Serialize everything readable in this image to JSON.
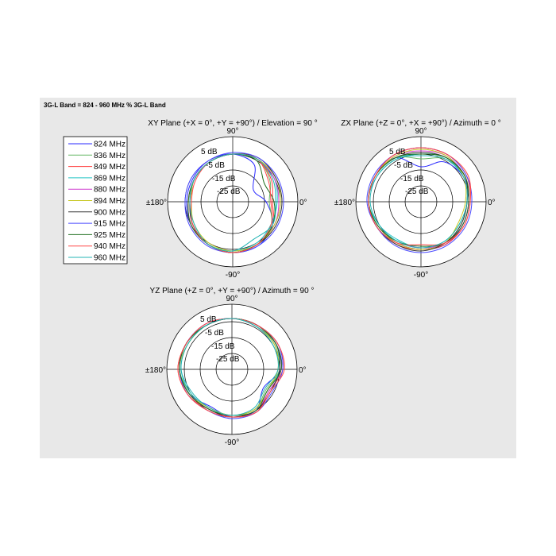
{
  "title": "3G-L Band = 824 - 960 MHz % 3G-L Band",
  "legend": [
    {
      "label": "824 MHz",
      "color": "#2a2aff"
    },
    {
      "label": "836 MHz",
      "color": "#66b866"
    },
    {
      "label": "849 MHz",
      "color": "#ff3a3a"
    },
    {
      "label": "869 MHz",
      "color": "#22c4c4"
    },
    {
      "label": "880 MHz",
      "color": "#d040d0"
    },
    {
      "label": "894 MHz",
      "color": "#c8c826"
    },
    {
      "label": "900 MHz",
      "color": "#333333"
    },
    {
      "label": "915 MHz",
      "color": "#4a4aff"
    },
    {
      "label": "925 MHz",
      "color": "#1f6e1f"
    },
    {
      "label": "940 MHz",
      "color": "#ff4848"
    },
    {
      "label": "960 MHz",
      "color": "#24b4b4"
    }
  ],
  "chart_data": [
    {
      "type": "polar",
      "title": "XY Plane (+X = 0°, +Y = +90°) / Elevation = 90 °",
      "angle_labels": {
        "top": "90°",
        "bottom": "-90°",
        "right": "0°",
        "left": "±180°"
      },
      "ring_labels": [
        "5 dB",
        "-5 dB",
        "-15 dB",
        "-25 dB"
      ],
      "rlim": [
        -35,
        5
      ],
      "angles_deg": [
        0,
        30,
        60,
        90,
        120,
        150,
        180,
        210,
        240,
        270,
        300,
        330
      ],
      "series": [
        {
          "name": "824 MHz",
          "values": [
            -14,
            -20,
            -8,
            -5,
            -5,
            -6,
            -6,
            -5,
            -4,
            -3,
            -3,
            -6
          ]
        },
        {
          "name": "836 MHz",
          "values": [
            -12,
            -8,
            -4,
            -5,
            -6,
            -7,
            -8,
            -6,
            -4,
            -4,
            -4,
            -7
          ]
        },
        {
          "name": "849 MHz",
          "values": [
            -10,
            -7,
            -4,
            -5,
            -6,
            -7,
            -7,
            -5,
            -4,
            -3,
            -4,
            -6
          ]
        },
        {
          "name": "869 MHz",
          "values": [
            -7,
            -5,
            -4,
            -5,
            -6,
            -7,
            -9,
            -6,
            -4,
            -4,
            -5,
            -7
          ]
        },
        {
          "name": "880 MHz",
          "values": [
            -6,
            -5,
            -4,
            -5,
            -6,
            -7,
            -8,
            -6,
            -4,
            -3,
            -4,
            -5
          ]
        },
        {
          "name": "894 MHz",
          "values": [
            -5,
            -4,
            -4,
            -5,
            -6,
            -7,
            -9,
            -7,
            -5,
            -4,
            -4,
            -5
          ]
        },
        {
          "name": "900 MHz",
          "values": [
            -4,
            -4,
            -3,
            -5,
            -6,
            -7,
            -8,
            -6,
            -4,
            -3,
            -4,
            -4
          ]
        },
        {
          "name": "915 MHz",
          "values": [
            -3,
            -3,
            -3,
            -4,
            -5,
            -5,
            -5,
            -4,
            -3,
            -3,
            -3,
            -3
          ]
        },
        {
          "name": "925 MHz",
          "values": [
            -9,
            -12,
            -5,
            -5,
            -6,
            -7,
            -7,
            -5,
            -4,
            -3,
            -4,
            -6
          ]
        },
        {
          "name": "940 MHz",
          "values": [
            -11,
            -9,
            -4,
            -5,
            -6,
            -8,
            -9,
            -6,
            -4,
            -3,
            -4,
            -7
          ]
        },
        {
          "name": "960 MHz",
          "values": [
            -8,
            -6,
            -4,
            -5,
            -6,
            -7,
            -8,
            -7,
            -4,
            -4,
            -8,
            -6
          ]
        }
      ]
    },
    {
      "type": "polar",
      "title": "ZX Plane (+Z = 0°, +X = +90°) / Azimuth = 0 °",
      "angle_labels": {
        "top": "90°",
        "bottom": "-90°",
        "right": "0°",
        "left": "±180°"
      },
      "ring_labels": [
        "5 dB",
        "-5 dB",
        "-15 dB",
        "-25 dB"
      ],
      "rlim": [
        -35,
        5
      ],
      "angles_deg": [
        0,
        30,
        60,
        90,
        120,
        150,
        180,
        210,
        240,
        270,
        300,
        330
      ],
      "series": [
        {
          "name": "824 MHz",
          "values": [
            -5,
            -4,
            -6,
            -13,
            -3,
            -2,
            -2,
            -3,
            -5,
            -5,
            -4,
            -5
          ]
        },
        {
          "name": "836 MHz",
          "values": [
            -6,
            -3,
            -4,
            -8,
            -3,
            -2,
            -2,
            -4,
            -6,
            -6,
            -5,
            -6
          ]
        },
        {
          "name": "849 MHz",
          "values": [
            -4,
            -2,
            -1,
            -1,
            -1,
            -2,
            -2,
            -3,
            -4,
            -5,
            -4,
            -4
          ]
        },
        {
          "name": "869 MHz",
          "values": [
            -6,
            -4,
            -3,
            -5,
            -4,
            -3,
            -2,
            -5,
            -7,
            -6,
            -6,
            -7
          ]
        },
        {
          "name": "880 MHz",
          "values": [
            -5,
            -3,
            -2,
            -3,
            -2,
            -2,
            -2,
            -4,
            -6,
            -6,
            -5,
            -5
          ]
        },
        {
          "name": "894 MHz",
          "values": [
            -7,
            -4,
            -2,
            -2,
            -2,
            -2,
            -2,
            -4,
            -5,
            -5,
            -5,
            -8
          ]
        },
        {
          "name": "900 MHz",
          "values": [
            -6,
            -3,
            -3,
            -4,
            -3,
            -2,
            -2,
            -3,
            -4,
            -4,
            -5,
            -6
          ]
        },
        {
          "name": "915 MHz",
          "values": [
            -3,
            -2,
            -1,
            -1,
            -1,
            -1,
            -1,
            -3,
            -3,
            -3,
            -3,
            -3
          ]
        },
        {
          "name": "925 MHz",
          "values": [
            -5,
            -3,
            -3,
            -5,
            -3,
            -2,
            -2,
            -4,
            -6,
            -7,
            -5,
            -5
          ]
        },
        {
          "name": "940 MHz",
          "values": [
            -4,
            -1,
            -1,
            -1,
            -1,
            -2,
            -2,
            -3,
            -5,
            -8,
            -5,
            -4
          ]
        },
        {
          "name": "960 MHz",
          "values": [
            -6,
            -4,
            -4,
            -6,
            -4,
            -3,
            -3,
            -5,
            -6,
            -6,
            -6,
            -7
          ]
        }
      ]
    },
    {
      "type": "polar",
      "title": "YZ Plane (+Z = 0°, +Y = +90°) / Azimuth = 90 °",
      "angle_labels": {
        "top": "90°",
        "bottom": "-90°",
        "right": "0°",
        "left": "±180°"
      },
      "ring_labels": [
        "5 dB",
        "-5 dB",
        "-15 dB",
        "-25 dB"
      ],
      "rlim": [
        -35,
        5
      ],
      "angles_deg": [
        0,
        30,
        60,
        90,
        120,
        150,
        180,
        210,
        240,
        270,
        300,
        330
      ],
      "series": [
        {
          "name": "824 MHz",
          "values": [
            -4,
            -3,
            -4,
            -3,
            -3,
            -2,
            -2,
            -4,
            -8,
            -5,
            -5,
            -12
          ]
        },
        {
          "name": "836 MHz",
          "values": [
            -5,
            -4,
            -3,
            -3,
            -3,
            -2,
            -2,
            -5,
            -7,
            -6,
            -6,
            -10
          ]
        },
        {
          "name": "849 MHz",
          "values": [
            -3,
            -2,
            -3,
            -3,
            -2,
            -2,
            -1,
            -3,
            -6,
            -5,
            -4,
            -8
          ]
        },
        {
          "name": "869 MHz",
          "values": [
            -5,
            -4,
            -4,
            -3,
            -3,
            -3,
            -3,
            -5,
            -7,
            -6,
            -6,
            -9
          ]
        },
        {
          "name": "880 MHz",
          "values": [
            -4,
            -3,
            -3,
            -3,
            -3,
            -2,
            -2,
            -4,
            -6,
            -5,
            -5,
            -8
          ]
        },
        {
          "name": "894 MHz",
          "values": [
            -6,
            -4,
            -4,
            -3,
            -3,
            -3,
            -2,
            -4,
            -7,
            -6,
            -6,
            -9
          ]
        },
        {
          "name": "900 MHz",
          "values": [
            -5,
            -3,
            -3,
            -3,
            -3,
            -2,
            -2,
            -4,
            -6,
            -5,
            -5,
            -7
          ]
        },
        {
          "name": "915 MHz",
          "values": [
            -3,
            -2,
            -3,
            -3,
            -2,
            -2,
            -2,
            -3,
            -5,
            -4,
            -4,
            -6
          ]
        },
        {
          "name": "925 MHz",
          "values": [
            -4,
            -3,
            -3,
            -3,
            -3,
            -2,
            -2,
            -4,
            -6,
            -6,
            -5,
            -9
          ]
        },
        {
          "name": "940 MHz",
          "values": [
            -2,
            -2,
            -3,
            -3,
            -2,
            -2,
            -1,
            -3,
            -5,
            -5,
            -4,
            -7
          ]
        },
        {
          "name": "960 MHz",
          "values": [
            -6,
            -5,
            -4,
            -3,
            -3,
            -3,
            -3,
            -6,
            -7,
            -6,
            -7,
            -11
          ]
        }
      ]
    }
  ]
}
